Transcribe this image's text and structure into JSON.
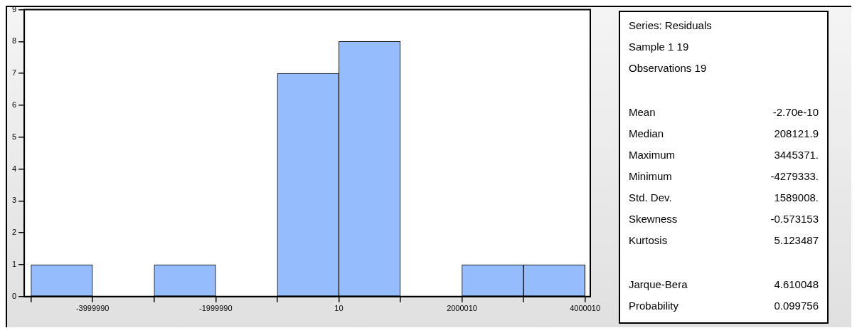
{
  "chart_data": {
    "type": "histogram",
    "bins": [
      -4999990,
      -3999990,
      -2999990,
      -1999990,
      -999990,
      10,
      1000010,
      2000010,
      3000010,
      4000010
    ],
    "values": [
      1,
      0,
      1,
      0,
      7,
      8,
      0,
      1,
      1
    ],
    "color": "#95bcfd",
    "xlim": [
      -5110000,
      4085000
    ],
    "xticks": [
      {
        "value": -4999990,
        "label": null
      },
      -3999990,
      {
        "value": -2999990,
        "label": null
      },
      -1999990,
      {
        "value": -999990,
        "label": null
      },
      10,
      {
        "value": 1000010,
        "label": null
      },
      2000010,
      {
        "value": 3000010,
        "label": null
      },
      4000010
    ],
    "ylim": [
      0,
      9
    ],
    "yticks": [
      0,
      1,
      2,
      3,
      4,
      5,
      6,
      7,
      8,
      9
    ],
    "grid": false,
    "legend": false,
    "annotations": [
      "Series: Residuals",
      "Sample 1 19",
      "Observations 19",
      "Mean -2.70e-10",
      "Median 208121.9",
      "Maximum 3445371.",
      "Minimum -4279333.",
      "Std. Dev. 1589008.",
      "Skewness -0.573153",
      "Kurtosis 5.123487",
      "Jarque-Bera 4.610048",
      "Probability 0.099756"
    ]
  }
}
